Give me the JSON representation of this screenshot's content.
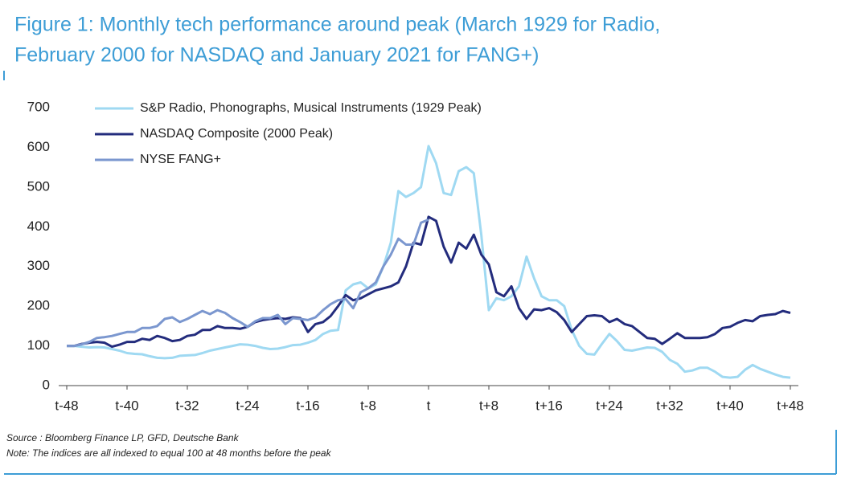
{
  "chart_data": {
    "type": "line",
    "title": [
      "Figure 1: Monthly tech performance around peak (March 1929 for Radio,",
      "February 2000 for NASDAQ and January 2021 for FANG+)"
    ],
    "source": "Source : Bloomberg Finance LP, GFD, Deutsche Bank",
    "note": "Note: The indices are all indexed to equal 100 at 48 months before the peak",
    "x": [
      -48,
      -47,
      -46,
      -45,
      -44,
      -43,
      -42,
      -41,
      -40,
      -39,
      -38,
      -37,
      -36,
      -35,
      -34,
      -33,
      -32,
      -31,
      -30,
      -29,
      -28,
      -27,
      -26,
      -25,
      -24,
      -23,
      -22,
      -21,
      -20,
      -19,
      -18,
      -17,
      -16,
      -15,
      -14,
      -13,
      -12,
      -11,
      -10,
      -9,
      -8,
      -7,
      -6,
      -5,
      -4,
      -3,
      -2,
      -1,
      0,
      1,
      2,
      3,
      4,
      5,
      6,
      7,
      8,
      9,
      10,
      11,
      12,
      13,
      14,
      15,
      16,
      17,
      18,
      19,
      20,
      21,
      22,
      23,
      24,
      25,
      26,
      27,
      28,
      29,
      30,
      31,
      32,
      33,
      34,
      35,
      36,
      37,
      38,
      39,
      40,
      41,
      42,
      43,
      44,
      45,
      46,
      47,
      48
    ],
    "xlim": [
      -48,
      48
    ],
    "xticks": [
      {
        "value": -48,
        "label": "t-48"
      },
      {
        "value": -40,
        "label": "t-40"
      },
      {
        "value": -32,
        "label": "t-32"
      },
      {
        "value": -24,
        "label": "t-24"
      },
      {
        "value": -16,
        "label": "t-16"
      },
      {
        "value": -8,
        "label": "t-8"
      },
      {
        "value": 0,
        "label": "t"
      },
      {
        "value": 8,
        "label": "t+8"
      },
      {
        "value": 16,
        "label": "t+16"
      },
      {
        "value": 24,
        "label": "t+24"
      },
      {
        "value": 32,
        "label": "t+32"
      },
      {
        "value": 40,
        "label": "t+40"
      },
      {
        "value": 48,
        "label": "t+48"
      }
    ],
    "ylim": [
      0,
      700
    ],
    "yticks": [
      0,
      100,
      200,
      300,
      400,
      500,
      600,
      700
    ],
    "grid": false,
    "legend": "top-left",
    "series": [
      {
        "name": "S&P Radio, Phonographs, Musical Instruments (1929 Peak)",
        "color": "#9fd9f2",
        "values": [
          100,
          100,
          98,
          96,
          97,
          96,
          92,
          88,
          82,
          80,
          79,
          74,
          70,
          69,
          70,
          75,
          76,
          77,
          82,
          88,
          92,
          96,
          100,
          104,
          103,
          100,
          95,
          92,
          93,
          97,
          102,
          103,
          108,
          115,
          130,
          138,
          140,
          240,
          255,
          260,
          245,
          255,
          300,
          360,
          490,
          475,
          485,
          500,
          603,
          560,
          485,
          480,
          540,
          550,
          535,
          380,
          190,
          220,
          215,
          225,
          250,
          325,
          270,
          225,
          215,
          215,
          200,
          140,
          100,
          80,
          78,
          105,
          130,
          112,
          90,
          88,
          92,
          96,
          95,
          85,
          65,
          55,
          35,
          38,
          45,
          45,
          35,
          22,
          20,
          22,
          40,
          52,
          42,
          35,
          28,
          22,
          20
        ]
      },
      {
        "name": "NASDAQ Composite (2000 Peak)",
        "color": "#232c7d",
        "values": [
          100,
          100,
          105,
          108,
          110,
          108,
          98,
          103,
          110,
          110,
          118,
          115,
          125,
          120,
          112,
          115,
          125,
          128,
          140,
          140,
          150,
          145,
          145,
          143,
          148,
          160,
          165,
          168,
          170,
          168,
          172,
          170,
          135,
          155,
          160,
          175,
          200,
          228,
          215,
          220,
          230,
          240,
          245,
          250,
          260,
          300,
          360,
          355,
          425,
          415,
          350,
          310,
          360,
          345,
          380,
          330,
          305,
          235,
          225,
          250,
          195,
          168,
          192,
          190,
          195,
          185,
          165,
          135,
          155,
          175,
          177,
          175,
          160,
          168,
          155,
          150,
          135,
          120,
          118,
          105,
          118,
          132,
          120,
          120,
          120,
          122,
          130,
          145,
          148,
          158,
          165,
          162,
          175,
          178,
          180,
          188,
          183
        ]
      },
      {
        "name": "NYSE FANG+",
        "color": "#7b97cf",
        "values": [
          100,
          100,
          104,
          110,
          120,
          122,
          125,
          130,
          135,
          135,
          145,
          145,
          150,
          168,
          172,
          160,
          168,
          178,
          188,
          180,
          190,
          183,
          170,
          160,
          148,
          162,
          170,
          170,
          178,
          155,
          170,
          168,
          165,
          172,
          190,
          205,
          215,
          218,
          195,
          235,
          245,
          260,
          300,
          330,
          370,
          355,
          355,
          410,
          418,
          null,
          null,
          null,
          null,
          null,
          null,
          null,
          null,
          null,
          null,
          null,
          null,
          null,
          null,
          null,
          null,
          null,
          null,
          null,
          null,
          null,
          null,
          null,
          null,
          null,
          null,
          null,
          null,
          null,
          null,
          null,
          null,
          null,
          null,
          null,
          null,
          null,
          null,
          null,
          null,
          null,
          null,
          null,
          null,
          null,
          null,
          null,
          null
        ]
      }
    ]
  }
}
